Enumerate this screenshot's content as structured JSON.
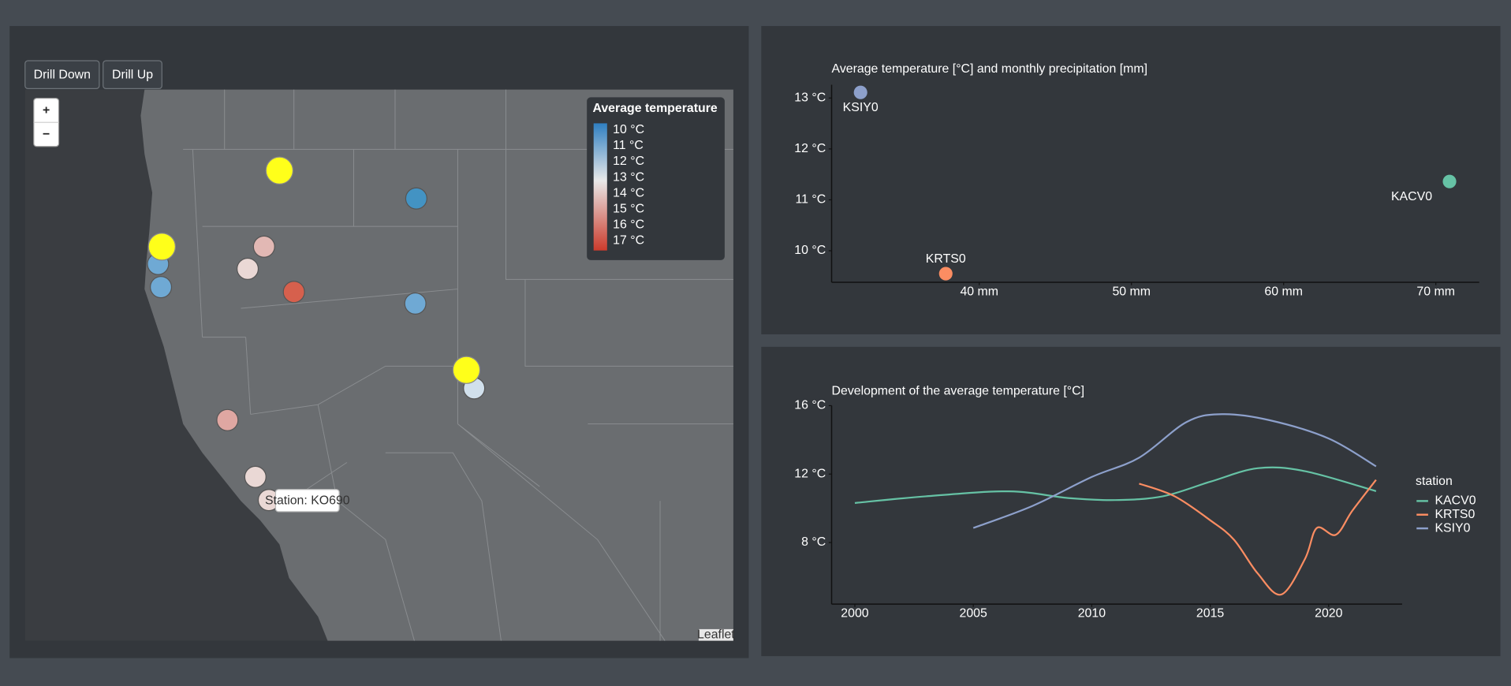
{
  "buttons": [
    "Drill Down",
    "Drill Up"
  ],
  "map": {
    "zoom_in": "+",
    "zoom_out": "−",
    "legend_title": "Average temperature",
    "legend_labels": [
      "10 °C",
      "11 °C",
      "12 °C",
      "13 °C",
      "14 °C",
      "15 °C",
      "16 °C",
      "17 °C"
    ],
    "tooltip": "Station: KO690",
    "attribution": "Leaflet"
  },
  "chart_data": [
    {
      "type": "scatter",
      "title": "Average temperature [°C] and monthly precipitation [mm]",
      "series": [
        {
          "name": "KSIY0",
          "color": "#8da0cb",
          "x": [
            32.2
          ],
          "values": [
            13.11
          ]
        },
        {
          "name": "KRTS0",
          "color": "#fc8d62",
          "x": [
            37.8
          ],
          "values": [
            9.55
          ]
        },
        {
          "name": "KACV0",
          "color": "#66c2a5",
          "x": [
            70.9
          ],
          "values": [
            11.36
          ]
        }
      ],
      "xlim": [
        30.3,
        72.85
      ],
      "xticks": [
        {
          "value": 40,
          "label": "40 mm"
        },
        {
          "value": 50,
          "label": "50 mm"
        },
        {
          "value": 60,
          "label": "60 mm"
        },
        {
          "value": 70,
          "label": "70 mm"
        }
      ],
      "ylim": [
        9.38,
        13.26
      ],
      "yticks": [
        {
          "value": 10,
          "label": "10 °C"
        },
        {
          "value": 11,
          "label": "11 °C"
        },
        {
          "value": 12,
          "label": "12 °C"
        },
        {
          "value": 13,
          "label": "13 °C"
        }
      ]
    },
    {
      "type": "line",
      "title": "Development of the average temperature [°C]",
      "legend_title": "station",
      "series": [
        {
          "name": "KACV0",
          "color": "#66c2a5",
          "x": [
            2000,
            2003,
            2006.5,
            2009,
            2011,
            2013,
            2015,
            2017,
            2019,
            2022
          ],
          "values": [
            10.31,
            10.7,
            10.99,
            10.6,
            10.48,
            10.7,
            11.55,
            12.34,
            12.17,
            11.0
          ]
        },
        {
          "name": "KRTS0",
          "color": "#fc8d62",
          "x": [
            2012,
            2013.5,
            2015,
            2016,
            2017,
            2018,
            2019,
            2019.5,
            2020.3,
            2021,
            2022
          ],
          "values": [
            11.44,
            10.7,
            9.3,
            8.17,
            6.2,
            4.96,
            7.04,
            8.85,
            8.45,
            9.86,
            11.66
          ]
        },
        {
          "name": "KSIY0",
          "color": "#8da0cb",
          "x": [
            2005,
            2007.5,
            2010,
            2012,
            2014,
            2015.5,
            2017.5,
            2020,
            2022
          ],
          "values": [
            8.85,
            10.14,
            11.83,
            12.96,
            15.04,
            15.5,
            15.15,
            14.08,
            12.45
          ]
        }
      ],
      "xlim": [
        1999.02,
        2023.1
      ],
      "xticks": [
        2000,
        2005,
        2010,
        2015,
        2020
      ],
      "ylim": [
        4.4,
        16
      ],
      "yticks": [
        {
          "value": 8,
          "label": "8 °C"
        },
        {
          "value": 12,
          "label": "12 °C"
        },
        {
          "value": 16,
          "label": "16 °C"
        }
      ]
    }
  ]
}
